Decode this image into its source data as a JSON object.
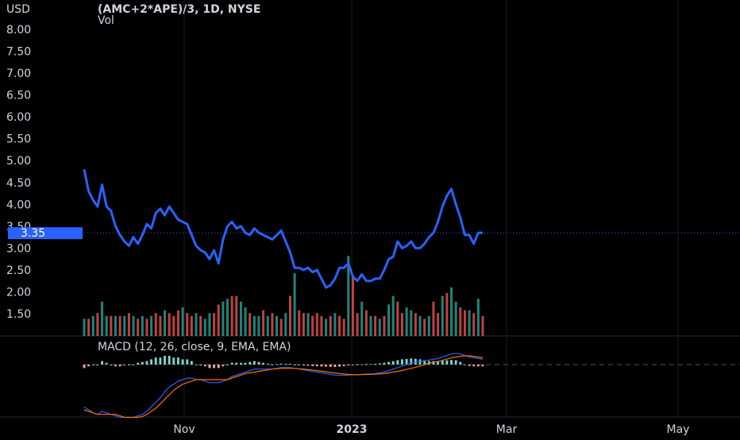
{
  "header": {
    "currency": "USD",
    "symbol_title": "(AMC+2*APE)/3, 1D, NYSE",
    "volume_label": "Vol"
  },
  "colors": {
    "background": "#000000",
    "price_line": "#2962ff",
    "price_badge": "#2962ff",
    "grid": "#1c1c1c",
    "axis_text": "#d1d4dc",
    "vol_up": "#26a69a",
    "vol_down": "#ef5350",
    "macd_line": "#2962ff",
    "signal_line": "#ff6d00"
  },
  "chart_data": [
    {
      "type": "line",
      "title": "(AMC+2*APE)/3, 1D, NYSE",
      "ylabel": "USD",
      "ylim": [
        1.1,
        8.3
      ],
      "yticks": [
        "8.00",
        "7.50",
        "7.00",
        "6.50",
        "6.00",
        "5.50",
        "5.00",
        "4.50",
        "4.00",
        "3.50",
        "3.00",
        "2.50",
        "2.00",
        "1.50"
      ],
      "x_ticks": [
        "Nov",
        "2023",
        "Mar",
        "May"
      ],
      "grid": true,
      "last_price_label": "3.35",
      "last_price": 3.35,
      "series": [
        {
          "name": "",
          "values": [
            4.8,
            4.3,
            4.1,
            3.95,
            4.45,
            3.95,
            3.85,
            3.5,
            3.3,
            3.15,
            3.05,
            3.25,
            3.1,
            3.3,
            3.55,
            3.45,
            3.8,
            3.9,
            3.75,
            3.95,
            3.8,
            3.65,
            3.6,
            3.55,
            3.3,
            3.05,
            2.95,
            2.9,
            2.75,
            2.95,
            2.65,
            3.2,
            3.5,
            3.6,
            3.45,
            3.5,
            3.35,
            3.3,
            3.45,
            3.35,
            3.3,
            3.25,
            3.2,
            3.3,
            3.4,
            3.15,
            2.9,
            2.55,
            2.55,
            2.5,
            2.55,
            2.45,
            2.5,
            2.3,
            2.1,
            2.15,
            2.3,
            2.55,
            2.55,
            2.65,
            2.35,
            2.25,
            2.4,
            2.25,
            2.25,
            2.3,
            2.3,
            2.5,
            2.75,
            2.8,
            3.15,
            3.0,
            3.05,
            3.15,
            3.0,
            3.0,
            3.1,
            3.25,
            3.35,
            3.6,
            3.95,
            4.2,
            4.35,
            4.0,
            3.7,
            3.3,
            3.3,
            3.1,
            3.35,
            3.35
          ]
        }
      ]
    },
    {
      "type": "bar",
      "title": "Vol",
      "values": [
        1.7,
        1.7,
        1.8,
        1.9,
        2.3,
        1.8,
        1.8,
        1.8,
        1.8,
        1.8,
        1.9,
        1.8,
        1.7,
        1.8,
        1.7,
        1.8,
        1.9,
        1.8,
        2.0,
        1.9,
        1.8,
        2.0,
        2.1,
        1.9,
        1.8,
        1.9,
        1.8,
        1.7,
        1.9,
        1.9,
        2.2,
        2.3,
        2.4,
        2.5,
        2.5,
        2.3,
        2.1,
        1.9,
        1.8,
        1.8,
        2.0,
        1.8,
        1.9,
        1.8,
        1.7,
        1.9,
        2.5,
        3.3,
        2.0,
        1.9,
        1.9,
        1.8,
        1.9,
        1.8,
        1.7,
        1.8,
        1.9,
        1.8,
        1.7,
        3.9,
        3.2,
        1.9,
        2.3,
        2.0,
        1.8,
        1.8,
        1.7,
        1.8,
        2.2,
        2.5,
        2.3,
        1.9,
        2.1,
        2.0,
        1.9,
        1.8,
        1.7,
        1.8,
        2.3,
        1.9,
        2.5,
        2.6,
        2.8,
        2.3,
        2.1,
        2.0,
        2.0,
        1.9,
        2.4,
        1.8
      ],
      "colors": [
        "u",
        "d",
        "u",
        "d",
        "u",
        "u",
        "d",
        "u",
        "d",
        "u",
        "d",
        "u",
        "d",
        "u",
        "d",
        "u",
        "d",
        "d",
        "u",
        "d",
        "d",
        "d",
        "u",
        "d",
        "d",
        "u",
        "d",
        "u",
        "u",
        "d",
        "d",
        "u",
        "u",
        "d",
        "d",
        "u",
        "u",
        "d",
        "u",
        "u",
        "d",
        "u",
        "d",
        "u",
        "d",
        "u",
        "d",
        "u",
        "d",
        "d",
        "u",
        "d",
        "d",
        "d",
        "u",
        "d",
        "u",
        "d",
        "d",
        "u",
        "d",
        "d",
        "u",
        "d",
        "u",
        "d",
        "u",
        "d",
        "u",
        "u",
        "d",
        "d",
        "u",
        "u",
        "d",
        "u",
        "d",
        "u",
        "d",
        "d",
        "u",
        "d",
        "u",
        "u",
        "d",
        "d",
        "u",
        "d",
        "u",
        "d"
      ]
    },
    {
      "type": "line",
      "title": "MACD (12, 26, close, 9, EMA, EMA)",
      "series": [
        {
          "name": "",
          "values": [
            -0.28,
            -0.3,
            -0.32,
            -0.33,
            -0.31,
            -0.32,
            -0.33,
            -0.34,
            -0.35,
            -0.35,
            -0.35,
            -0.35,
            -0.34,
            -0.33,
            -0.31,
            -0.28,
            -0.25,
            -0.22,
            -0.18,
            -0.15,
            -0.13,
            -0.11,
            -0.1,
            -0.09,
            -0.09,
            -0.1,
            -0.1,
            -0.11,
            -0.12,
            -0.12,
            -0.12,
            -0.11,
            -0.1,
            -0.08,
            -0.07,
            -0.06,
            -0.05,
            -0.04,
            -0.03,
            -0.03,
            -0.03,
            -0.03,
            -0.03,
            -0.025,
            -0.02,
            -0.02,
            -0.02,
            -0.025,
            -0.03,
            -0.035,
            -0.04,
            -0.045,
            -0.05,
            -0.055,
            -0.06,
            -0.065,
            -0.07,
            -0.072,
            -0.072,
            -0.07,
            -0.068,
            -0.067,
            -0.065,
            -0.063,
            -0.062,
            -0.06,
            -0.055,
            -0.05,
            -0.04,
            -0.03,
            -0.02,
            -0.01,
            0.0,
            0.01,
            0.015,
            0.02,
            0.025,
            0.03,
            0.035,
            0.04,
            0.05,
            0.06,
            0.07,
            0.075,
            0.07,
            0.06,
            0.05,
            0.045,
            0.04,
            0.035
          ]
        },
        {
          "name": "",
          "values": [
            -0.3,
            -0.31,
            -0.32,
            -0.33,
            -0.33,
            -0.33,
            -0.33,
            -0.33,
            -0.34,
            -0.35,
            -0.35,
            -0.35,
            -0.35,
            -0.345,
            -0.33,
            -0.31,
            -0.29,
            -0.26,
            -0.23,
            -0.2,
            -0.17,
            -0.15,
            -0.13,
            -0.12,
            -0.11,
            -0.1,
            -0.1,
            -0.1,
            -0.1,
            -0.1,
            -0.1,
            -0.1,
            -0.1,
            -0.09,
            -0.08,
            -0.07,
            -0.06,
            -0.055,
            -0.05,
            -0.045,
            -0.04,
            -0.035,
            -0.03,
            -0.028,
            -0.025,
            -0.024,
            -0.024,
            -0.025,
            -0.028,
            -0.03,
            -0.033,
            -0.036,
            -0.04,
            -0.044,
            -0.048,
            -0.052,
            -0.056,
            -0.06,
            -0.063,
            -0.065,
            -0.067,
            -0.068,
            -0.067,
            -0.066,
            -0.065,
            -0.064,
            -0.062,
            -0.06,
            -0.055,
            -0.05,
            -0.045,
            -0.04,
            -0.032,
            -0.025,
            -0.018,
            -0.01,
            0.0,
            0.01,
            0.015,
            0.02,
            0.028,
            0.036,
            0.044,
            0.05,
            0.055,
            0.058,
            0.058,
            0.055,
            0.05,
            0.045
          ]
        }
      ],
      "histogram": [
        -0.02,
        -0.01,
        0.0,
        0.0,
        0.02,
        0.01,
        0.0,
        -0.01,
        -0.01,
        0.0,
        0.0,
        0.0,
        0.01,
        0.015,
        0.02,
        0.03,
        0.04,
        0.04,
        0.05,
        0.05,
        0.04,
        0.04,
        0.03,
        0.03,
        0.02,
        0.0,
        0.0,
        -0.01,
        -0.02,
        -0.02,
        -0.02,
        -0.01,
        0.0,
        0.01,
        0.01,
        0.01,
        0.01,
        0.015,
        0.02,
        0.015,
        0.01,
        0.005,
        0.0,
        0.003,
        0.005,
        0.004,
        0.004,
        0.0,
        -0.002,
        -0.005,
        -0.007,
        -0.009,
        -0.01,
        -0.011,
        -0.012,
        -0.013,
        -0.014,
        -0.012,
        -0.009,
        -0.005,
        -0.001,
        0.001,
        0.002,
        0.003,
        0.003,
        0.004,
        0.007,
        0.01,
        0.015,
        0.02,
        0.025,
        0.03,
        0.032,
        0.035,
        0.033,
        0.03,
        0.025,
        0.02,
        0.02,
        0.02,
        0.022,
        0.024,
        0.026,
        0.025,
        0.015,
        0.002,
        -0.008,
        -0.01,
        -0.01,
        -0.01
      ]
    }
  ]
}
